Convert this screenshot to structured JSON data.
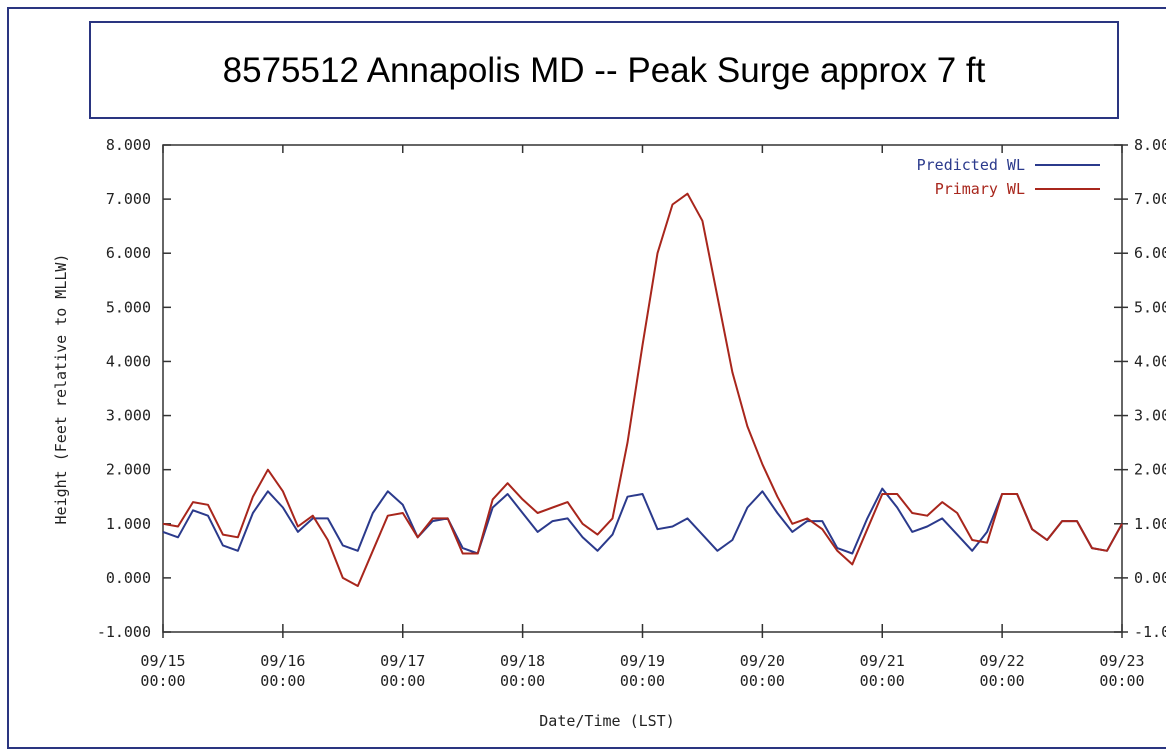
{
  "chart_data": {
    "type": "line",
    "title": "8575512 Annapolis MD -- Peak Surge approx 7 ft",
    "x_label": "Date/Time (LST)",
    "y_label": "Height (Feet relative to MLLW)",
    "x": [
      "09/15 00:00",
      "09/15 03:00",
      "09/15 06:00",
      "09/15 09:00",
      "09/15 12:00",
      "09/15 15:00",
      "09/15 18:00",
      "09/15 21:00",
      "09/16 00:00",
      "09/16 03:00",
      "09/16 06:00",
      "09/16 09:00",
      "09/16 12:00",
      "09/16 15:00",
      "09/16 18:00",
      "09/16 21:00",
      "09/17 00:00",
      "09/17 03:00",
      "09/17 06:00",
      "09/17 09:00",
      "09/17 12:00",
      "09/17 15:00",
      "09/17 18:00",
      "09/17 21:00",
      "09/18 00:00",
      "09/18 03:00",
      "09/18 06:00",
      "09/18 09:00",
      "09/18 12:00",
      "09/18 15:00",
      "09/18 18:00",
      "09/18 21:00",
      "09/19 00:00",
      "09/19 03:00",
      "09/19 06:00",
      "09/19 09:00",
      "09/19 12:00",
      "09/19 15:00",
      "09/19 18:00",
      "09/19 21:00",
      "09/20 00:00",
      "09/20 03:00",
      "09/20 06:00",
      "09/20 09:00",
      "09/20 12:00",
      "09/20 15:00",
      "09/20 18:00",
      "09/20 21:00",
      "09/21 00:00",
      "09/21 03:00",
      "09/21 06:00",
      "09/21 09:00",
      "09/21 12:00",
      "09/21 15:00",
      "09/21 18:00",
      "09/21 21:00",
      "09/22 00:00",
      "09/22 03:00",
      "09/22 06:00",
      "09/22 09:00",
      "09/22 12:00",
      "09/22 15:00",
      "09/22 18:00",
      "09/22 21:00",
      "09/23 00:00"
    ],
    "series": [
      {
        "name": "Predicted WL",
        "color": "#2b3a8c",
        "values": [
          0.85,
          0.75,
          1.25,
          1.15,
          0.6,
          0.5,
          1.2,
          1.6,
          1.3,
          0.85,
          1.1,
          1.1,
          0.6,
          0.5,
          1.2,
          1.6,
          1.35,
          0.75,
          1.05,
          1.1,
          0.55,
          0.45,
          1.3,
          1.55,
          1.2,
          0.85,
          1.05,
          1.1,
          0.75,
          0.5,
          0.8,
          1.5,
          1.55,
          0.9,
          0.95,
          1.1,
          0.8,
          0.5,
          0.7,
          1.3,
          1.6,
          1.2,
          0.85,
          1.05,
          1.05,
          0.55,
          0.45,
          1.1,
          1.65,
          1.3,
          0.85,
          0.95,
          1.1,
          0.8,
          0.5,
          0.85,
          1.55,
          1.55,
          0.9,
          0.7,
          1.05,
          1.05,
          0.55,
          0.5,
          1.0
        ]
      },
      {
        "name": "Primary WL",
        "color": "#a8261c",
        "values": [
          1.0,
          0.95,
          1.4,
          1.35,
          0.8,
          0.75,
          1.5,
          2.0,
          1.6,
          0.95,
          1.15,
          0.7,
          0.0,
          -0.15,
          0.5,
          1.15,
          1.2,
          0.75,
          1.1,
          1.1,
          0.45,
          0.45,
          1.45,
          1.75,
          1.45,
          1.2,
          1.3,
          1.4,
          1.0,
          0.8,
          1.1,
          2.5,
          4.3,
          6.0,
          6.9,
          7.1,
          6.6,
          5.2,
          3.8,
          2.8,
          2.1,
          1.5,
          1.0,
          1.1,
          0.9,
          0.5,
          0.25,
          0.9,
          1.55,
          1.55,
          1.2,
          1.15,
          1.4,
          1.2,
          0.7,
          0.65,
          1.55,
          1.55,
          0.9,
          0.7,
          1.05,
          1.05,
          0.55,
          0.5,
          1.0
        ]
      }
    ],
    "xlim": [
      "09/15 00:00",
      "09/23 00:00"
    ],
    "xticks": [
      "09/15 00:00",
      "09/16 00:00",
      "09/17 00:00",
      "09/18 00:00",
      "09/19 00:00",
      "09/20 00:00",
      "09/21 00:00",
      "09/22 00:00",
      "09/23 00:00"
    ],
    "ylim": [
      -1,
      8
    ],
    "yticks": [
      {
        "value": -1,
        "label": "-1.000"
      },
      {
        "value": 0,
        "label": "0.000"
      },
      {
        "value": 1,
        "label": "1.000"
      },
      {
        "value": 2,
        "label": "2.000"
      },
      {
        "value": 3,
        "label": "3.000"
      },
      {
        "value": 4,
        "label": "4.000"
      },
      {
        "value": 5,
        "label": "5.000"
      },
      {
        "value": 6,
        "label": "6.000"
      },
      {
        "value": 7,
        "label": "7.000"
      },
      {
        "value": 8,
        "label": "8.000"
      }
    ],
    "legend": "upper right",
    "grid": false
  }
}
